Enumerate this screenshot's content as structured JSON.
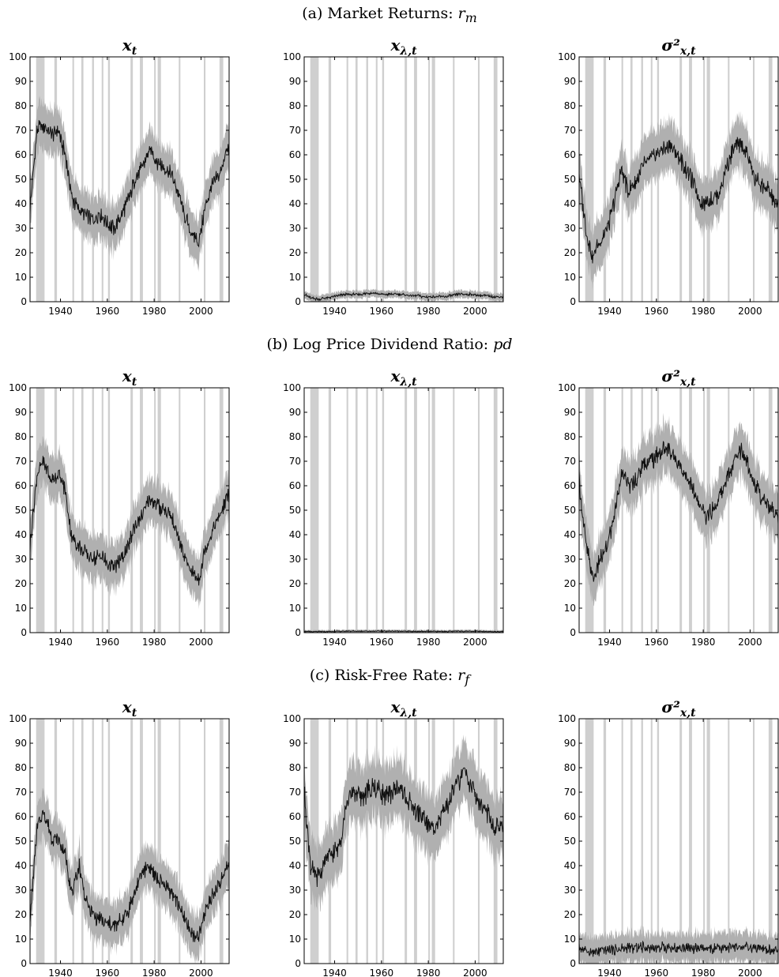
{
  "figure": {
    "sections": [
      {
        "label": "(a) Market Returns: ",
        "math": "r",
        "sub": "m"
      },
      {
        "label": "(b) Log Price Dividend Ratio: ",
        "math": "pd",
        "sub": ""
      },
      {
        "label": "(c) Risk-Free Rate: ",
        "math": "r",
        "sub": "f"
      }
    ],
    "colors": {
      "band": "#b0b0b0",
      "line": "#111111",
      "recession": "#cfcfcf",
      "axis": "#000000"
    }
  },
  "chart_data": [
    {
      "id": "a1",
      "type": "line",
      "title": "x_t",
      "xlim": [
        1927,
        2012
      ],
      "ylim": [
        0,
        100
      ],
      "xticks": [
        1940,
        1960,
        1980,
        2000
      ],
      "yticks": [
        0,
        10,
        20,
        30,
        40,
        50,
        60,
        70,
        80,
        90,
        100
      ],
      "x": [
        1927,
        1930,
        1933,
        1936,
        1939,
        1942,
        1945,
        1948,
        1951,
        1954,
        1957,
        1960,
        1963,
        1966,
        1969,
        1972,
        1975,
        1978,
        1981,
        1984,
        1987,
        1990,
        1993,
        1996,
        1999,
        2002,
        2005,
        2008,
        2011
      ],
      "series": [
        {
          "values": [
            38,
            70,
            72,
            68,
            70,
            60,
            42,
            38,
            35,
            33,
            36,
            32,
            30,
            35,
            42,
            50,
            55,
            62,
            58,
            55,
            52,
            45,
            35,
            28,
            24,
            40,
            48,
            52,
            62
          ]
        }
      ],
      "band_width": 9
    },
    {
      "id": "a2",
      "type": "line",
      "title": "x_λ,t",
      "xlim": [
        1927,
        2012
      ],
      "ylim": [
        0,
        100
      ],
      "xticks": [
        1940,
        1960,
        1980,
        2000
      ],
      "yticks": [
        0,
        10,
        20,
        30,
        40,
        50,
        60,
        70,
        80,
        90,
        100
      ],
      "x": [
        1927,
        1930,
        1933,
        1936,
        1939,
        1942,
        1945,
        1948,
        1951,
        1954,
        1957,
        1960,
        1963,
        1966,
        1969,
        1972,
        1975,
        1978,
        1981,
        1984,
        1987,
        1990,
        1993,
        1996,
        1999,
        2002,
        2005,
        2008,
        2011
      ],
      "series": [
        {
          "values": [
            3,
            1.5,
            1,
            1.5,
            2,
            2.5,
            3,
            3,
            3,
            3.5,
            3.5,
            3,
            3,
            3,
            3,
            2.5,
            2.5,
            2,
            2,
            2,
            2,
            2.5,
            3,
            3,
            3,
            2.5,
            2.5,
            2,
            2
          ]
        }
      ],
      "band_width": 1.5
    },
    {
      "id": "a3",
      "type": "line",
      "title": "σ²_x,t",
      "xlim": [
        1927,
        2012
      ],
      "ylim": [
        0,
        100
      ],
      "xticks": [
        1940,
        1960,
        1980,
        2000
      ],
      "yticks": [
        0,
        10,
        20,
        30,
        40,
        50,
        60,
        70,
        80,
        90,
        100
      ],
      "x": [
        1927,
        1930,
        1933,
        1936,
        1939,
        1942,
        1945,
        1948,
        1951,
        1954,
        1957,
        1960,
        1963,
        1966,
        1969,
        1972,
        1975,
        1978,
        1981,
        1984,
        1987,
        1990,
        1993,
        1996,
        1999,
        2002,
        2005,
        2008,
        2011
      ],
      "series": [
        {
          "values": [
            52,
            28,
            18,
            25,
            30,
            40,
            55,
            45,
            48,
            55,
            58,
            60,
            62,
            64,
            60,
            55,
            50,
            42,
            40,
            42,
            45,
            55,
            62,
            65,
            60,
            50,
            48,
            45,
            40
          ]
        }
      ],
      "band_width": 10
    },
    {
      "id": "b1",
      "type": "line",
      "title": "x_t",
      "xlim": [
        1927,
        2012
      ],
      "ylim": [
        0,
        100
      ],
      "xticks": [
        1940,
        1960,
        1980,
        2000
      ],
      "yticks": [
        0,
        10,
        20,
        30,
        40,
        50,
        60,
        70,
        80,
        90,
        100
      ],
      "x": [
        1927,
        1930,
        1933,
        1936,
        1939,
        1942,
        1945,
        1948,
        1951,
        1954,
        1957,
        1960,
        1963,
        1966,
        1969,
        1972,
        1975,
        1978,
        1981,
        1984,
        1987,
        1990,
        1993,
        1996,
        1999,
        2002,
        2005,
        2008,
        2011
      ],
      "series": [
        {
          "values": [
            35,
            65,
            70,
            62,
            65,
            58,
            38,
            35,
            32,
            30,
            32,
            28,
            27,
            30,
            35,
            45,
            48,
            55,
            52,
            50,
            48,
            40,
            30,
            25,
            22,
            35,
            42,
            48,
            55
          ]
        }
      ],
      "band_width": 9
    },
    {
      "id": "b2",
      "type": "line",
      "title": "x_λ,t",
      "xlim": [
        1927,
        2012
      ],
      "ylim": [
        0,
        100
      ],
      "xticks": [
        1940,
        1960,
        1980,
        2000
      ],
      "yticks": [
        0,
        10,
        20,
        30,
        40,
        50,
        60,
        70,
        80,
        90,
        100
      ],
      "x": [
        1927,
        1930,
        1933,
        1936,
        1939,
        1942,
        1945,
        1948,
        1951,
        1954,
        1957,
        1960,
        1963,
        1966,
        1969,
        1972,
        1975,
        1978,
        1981,
        1984,
        1987,
        1990,
        1993,
        1996,
        1999,
        2002,
        2005,
        2008,
        2011
      ],
      "series": [
        {
          "values": [
            0.5,
            0.4,
            0.4,
            0.4,
            0.5,
            0.5,
            0.6,
            0.6,
            0.6,
            0.6,
            0.6,
            0.6,
            0.6,
            0.6,
            0.6,
            0.5,
            0.5,
            0.5,
            0.5,
            0.5,
            0.5,
            0.5,
            0.6,
            0.6,
            0.6,
            0.5,
            0.5,
            0.4,
            0.4
          ]
        }
      ],
      "band_width": 0.6
    },
    {
      "id": "b3",
      "type": "line",
      "title": "σ²_x,t",
      "xlim": [
        1927,
        2012
      ],
      "ylim": [
        0,
        100
      ],
      "xticks": [
        1940,
        1960,
        1980,
        2000
      ],
      "yticks": [
        0,
        10,
        20,
        30,
        40,
        50,
        60,
        70,
        80,
        90,
        100
      ],
      "x": [
        1927,
        1930,
        1933,
        1936,
        1939,
        1942,
        1945,
        1948,
        1951,
        1954,
        1957,
        1960,
        1963,
        1966,
        1969,
        1972,
        1975,
        1978,
        1981,
        1984,
        1987,
        1990,
        1993,
        1996,
        1999,
        2002,
        2005,
        2008,
        2011
      ],
      "series": [
        {
          "values": [
            62,
            35,
            22,
            30,
            35,
            48,
            65,
            60,
            62,
            68,
            70,
            72,
            75,
            74,
            70,
            65,
            60,
            52,
            48,
            50,
            55,
            62,
            70,
            75,
            70,
            60,
            55,
            52,
            48
          ]
        }
      ],
      "band_width": 10
    },
    {
      "id": "c1",
      "type": "line",
      "title": "x_t",
      "xlim": [
        1927,
        2012
      ],
      "ylim": [
        0,
        100
      ],
      "xticks": [
        1940,
        1960,
        1980,
        2000
      ],
      "yticks": [
        0,
        10,
        20,
        30,
        40,
        50,
        60,
        70,
        80,
        90,
        100
      ],
      "x": [
        1927,
        1930,
        1933,
        1936,
        1939,
        1942,
        1945,
        1948,
        1951,
        1954,
        1957,
        1960,
        1963,
        1966,
        1969,
        1972,
        1975,
        1978,
        1981,
        1984,
        1987,
        1990,
        1993,
        1996,
        1999,
        2002,
        2005,
        2008,
        2011
      ],
      "series": [
        {
          "values": [
            18,
            55,
            62,
            52,
            50,
            45,
            28,
            40,
            25,
            20,
            18,
            16,
            15,
            18,
            22,
            30,
            38,
            40,
            35,
            32,
            30,
            25,
            18,
            12,
            10,
            22,
            28,
            32,
            40
          ]
        }
      ],
      "band_width": 9
    },
    {
      "id": "c2",
      "type": "line",
      "title": "x_λ,t",
      "xlim": [
        1927,
        2012
      ],
      "ylim": [
        0,
        100
      ],
      "xticks": [
        1940,
        1960,
        1980,
        2000
      ],
      "yticks": [
        0,
        10,
        20,
        30,
        40,
        50,
        60,
        70,
        80,
        90,
        100
      ],
      "x": [
        1927,
        1930,
        1933,
        1936,
        1939,
        1942,
        1945,
        1948,
        1951,
        1954,
        1957,
        1960,
        1963,
        1966,
        1969,
        1972,
        1975,
        1978,
        1981,
        1984,
        1987,
        1990,
        1993,
        1996,
        1999,
        2002,
        2005,
        2008,
        2011
      ],
      "series": [
        {
          "values": [
            70,
            38,
            35,
            42,
            45,
            48,
            65,
            70,
            68,
            70,
            72,
            70,
            68,
            72,
            70,
            65,
            62,
            60,
            55,
            58,
            62,
            70,
            75,
            78,
            72,
            65,
            62,
            55,
            55
          ]
        }
      ],
      "band_width": 12
    },
    {
      "id": "c3",
      "type": "line",
      "title": "σ²_x,t",
      "xlim": [
        1927,
        2012
      ],
      "ylim": [
        0,
        100
      ],
      "xticks": [
        1940,
        1960,
        1980,
        2000
      ],
      "yticks": [
        0,
        10,
        20,
        30,
        40,
        50,
        60,
        70,
        80,
        90,
        100
      ],
      "x": [
        1927,
        1930,
        1933,
        1936,
        1939,
        1942,
        1945,
        1948,
        1951,
        1954,
        1957,
        1960,
        1963,
        1966,
        1969,
        1972,
        1975,
        1978,
        1981,
        1984,
        1987,
        1990,
        1993,
        1996,
        1999,
        2002,
        2005,
        2008,
        2011
      ],
      "series": [
        {
          "values": [
            7,
            5,
            4.5,
            5,
            5.5,
            6,
            6,
            6.5,
            6.5,
            6.5,
            6.5,
            6.5,
            6.5,
            6.5,
            6.5,
            6.5,
            6,
            6,
            6,
            6,
            6,
            6.5,
            6.5,
            6.5,
            6.5,
            6,
            6,
            5.5,
            5.5
          ]
        }
      ],
      "band_width": 6
    }
  ],
  "recessions": [
    [
      1929.6,
      1933.2
    ],
    [
      1937.4,
      1938.5
    ],
    [
      1945.1,
      1945.8
    ],
    [
      1948.9,
      1949.8
    ],
    [
      1953.5,
      1954.3
    ],
    [
      1957.6,
      1958.3
    ],
    [
      1960.3,
      1961.1
    ],
    [
      1969.9,
      1970.9
    ],
    [
      1973.9,
      1975.2
    ],
    [
      1980.0,
      1980.5
    ],
    [
      1981.5,
      1982.9
    ],
    [
      1990.5,
      1991.2
    ],
    [
      2001.2,
      2001.9
    ],
    [
      2007.9,
      2009.5
    ]
  ]
}
